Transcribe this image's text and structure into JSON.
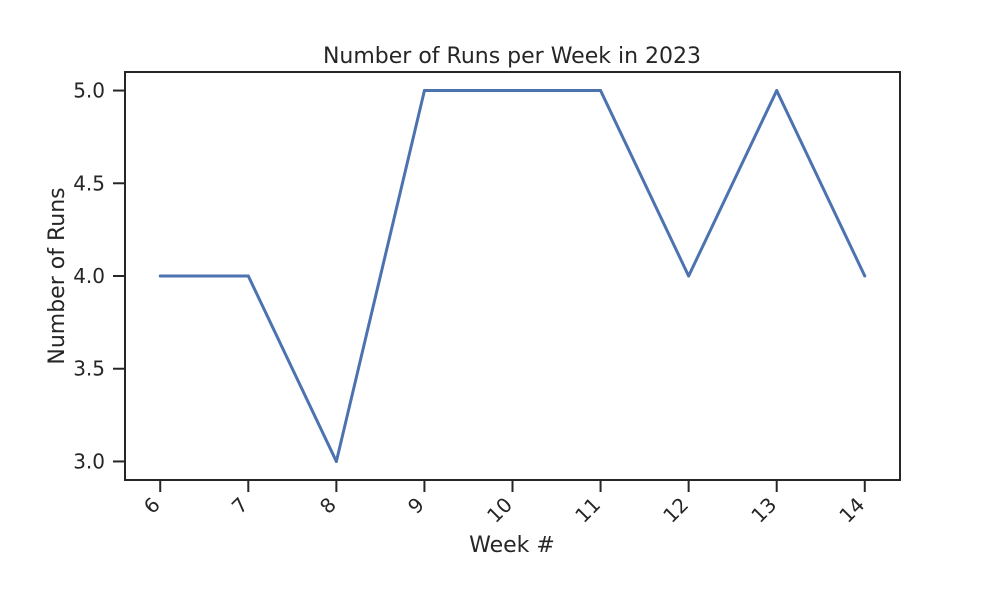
{
  "chart_data": {
    "type": "line",
    "title": "Number of Runs per Week in 2023",
    "xlabel": "Week #",
    "ylabel": "Number of Runs",
    "x": [
      6,
      7,
      8,
      9,
      10,
      11,
      12,
      13,
      14
    ],
    "x_tick_labels": [
      "6",
      "7",
      "8",
      "9",
      "10",
      "11",
      "12",
      "13",
      "14"
    ],
    "y_ticks": [
      3.0,
      3.5,
      4.0,
      4.5,
      5.0
    ],
    "y_tick_labels": [
      "3.0",
      "3.5",
      "4.0",
      "4.5",
      "5.0"
    ],
    "xlim": [
      5.6,
      14.4
    ],
    "ylim": [
      2.9,
      5.1
    ],
    "series": [
      {
        "values": [
          4,
          4,
          3,
          5,
          5,
          5,
          4,
          5,
          4
        ],
        "color": "#4c72b0"
      }
    ],
    "grid": false,
    "legend": "none"
  }
}
